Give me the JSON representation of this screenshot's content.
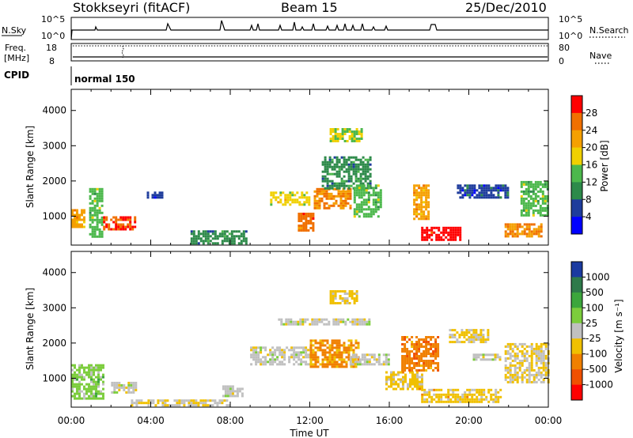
{
  "header": {
    "station": "Stokkseyri (fitACF)",
    "beam": "Beam 15",
    "date": "25/Dec/2010"
  },
  "top_panels": {
    "nsky_label": "N.Sky",
    "nsky_ticks": [
      "10^5",
      "10^0"
    ],
    "nsearch_label": "N.Search",
    "nsearch_ticks": [
      "10^5",
      "10^0"
    ],
    "freq_label": "Freq.",
    "freq_unit": "[MHz]",
    "freq_ticks": [
      "18",
      "8"
    ],
    "nave_label": "Nave",
    "nave_ticks": [
      "80",
      "0"
    ],
    "cpid_label": "CPID",
    "cpid_value": "normal 150"
  },
  "colors": {
    "power_scale": [
      "#0000ff",
      "#1e3c9c",
      "#2d8a4a",
      "#4cb84c",
      "#f0d000",
      "#f5a000",
      "#f07000",
      "#ff0000"
    ],
    "velocity_scale": [
      "#1a3aa0",
      "#2e7a4a",
      "#3ca63c",
      "#7ccd3c",
      "#c0c0c0",
      "#f0c000",
      "#f08000",
      "#f05000",
      "#ff0000"
    ],
    "ground_scatter": "#c0c0c0"
  },
  "chart_data": [
    {
      "type": "heatmap",
      "panel": "power",
      "ylabel": "Slant Range [km]",
      "yticks": [
        "1000",
        "2000",
        "3000",
        "4000"
      ],
      "ylim": [
        180,
        4600
      ],
      "xlim": [
        "00:00",
        "24:00"
      ],
      "colorbar": {
        "label": "Power [dB]",
        "ticks": [
          "4",
          "8",
          "12",
          "16",
          "20",
          "24",
          "28"
        ],
        "range": [
          0,
          32
        ]
      },
      "regions": [
        {
          "t": [
            0.0,
            0.6
          ],
          "r": [
            700,
            1200
          ],
          "value": 22
        },
        {
          "t": [
            0.9,
            1.6
          ],
          "r": [
            400,
            1800
          ],
          "value": 14
        },
        {
          "t": [
            1.6,
            3.2
          ],
          "r": [
            600,
            1000
          ],
          "value": 28
        },
        {
          "t": [
            3.8,
            4.6
          ],
          "r": [
            1500,
            1700
          ],
          "value": 6
        },
        {
          "t": [
            6.0,
            8.8
          ],
          "r": [
            250,
            600
          ],
          "value": 10
        },
        {
          "t": [
            10.0,
            12.0
          ],
          "r": [
            1300,
            1700
          ],
          "value": 18
        },
        {
          "t": [
            11.4,
            12.2
          ],
          "r": [
            600,
            1100
          ],
          "value": 26
        },
        {
          "t": [
            12.2,
            14.0
          ],
          "r": [
            1200,
            1800
          ],
          "value": 24
        },
        {
          "t": [
            12.6,
            15.0
          ],
          "r": [
            1800,
            2700
          ],
          "value": 10
        },
        {
          "t": [
            13.0,
            14.6
          ],
          "r": [
            3100,
            3500
          ],
          "value": 16
        },
        {
          "t": [
            14.2,
            15.6
          ],
          "r": [
            1000,
            1900
          ],
          "value": 14
        },
        {
          "t": [
            17.2,
            18.0
          ],
          "r": [
            900,
            1900
          ],
          "value": 22
        },
        {
          "t": [
            17.6,
            19.6
          ],
          "r": [
            300,
            700
          ],
          "value": 30
        },
        {
          "t": [
            19.4,
            22.0
          ],
          "r": [
            1500,
            1900
          ],
          "value": 6
        },
        {
          "t": [
            21.8,
            23.6
          ],
          "r": [
            400,
            800
          ],
          "value": 24
        },
        {
          "t": [
            22.6,
            24.0
          ],
          "r": [
            1000,
            2000
          ],
          "value": 14
        }
      ]
    },
    {
      "type": "heatmap",
      "panel": "velocity",
      "ylabel": "Slant Range [km]",
      "yticks": [
        "1000",
        "2000",
        "3000",
        "4000"
      ],
      "ylim": [
        180,
        4600
      ],
      "xlim": [
        "00:00",
        "24:00"
      ],
      "xlabel": "Time UT",
      "xticks": [
        "00:00",
        "04:00",
        "08:00",
        "12:00",
        "16:00",
        "20:00",
        "00:00"
      ],
      "colorbar": {
        "label": "Velocity [m s⁻¹]",
        "ticks": [
          "1000",
          "500",
          "100",
          "25",
          "-25",
          "-100",
          "-500",
          "-1000"
        ],
        "range": [
          -1500,
          1500
        ]
      },
      "regions": [
        {
          "t": [
            0.0,
            1.6
          ],
          "r": [
            400,
            1400
          ],
          "value": 300
        },
        {
          "t": [
            2.0,
            3.2
          ],
          "r": [
            600,
            900
          ],
          "value": 0
        },
        {
          "t": [
            3.0,
            8.0
          ],
          "r": [
            250,
            400
          ],
          "value": -80
        },
        {
          "t": [
            7.6,
            8.6
          ],
          "r": [
            500,
            800
          ],
          "value": 0
        },
        {
          "t": [
            9.0,
            12.0
          ],
          "r": [
            1400,
            1900
          ],
          "value": 0
        },
        {
          "t": [
            10.4,
            15.0
          ],
          "r": [
            2500,
            2700
          ],
          "value": 0
        },
        {
          "t": [
            12.0,
            14.4
          ],
          "r": [
            1300,
            2100
          ],
          "value": -600
        },
        {
          "t": [
            13.0,
            14.4
          ],
          "r": [
            3100,
            3500
          ],
          "value": -300
        },
        {
          "t": [
            14.0,
            16.0
          ],
          "r": [
            1400,
            1700
          ],
          "value": 0
        },
        {
          "t": [
            15.8,
            17.6
          ],
          "r": [
            700,
            1200
          ],
          "value": -300
        },
        {
          "t": [
            16.6,
            18.4
          ],
          "r": [
            1200,
            2200
          ],
          "value": -700
        },
        {
          "t": [
            17.6,
            21.6
          ],
          "r": [
            300,
            700
          ],
          "value": -300
        },
        {
          "t": [
            19.0,
            21.0
          ],
          "r": [
            2000,
            2400
          ],
          "value": -200
        },
        {
          "t": [
            20.2,
            21.6
          ],
          "r": [
            1500,
            1700
          ],
          "value": 0
        },
        {
          "t": [
            21.8,
            24.0
          ],
          "r": [
            900,
            2000
          ],
          "value": -150
        }
      ]
    }
  ]
}
